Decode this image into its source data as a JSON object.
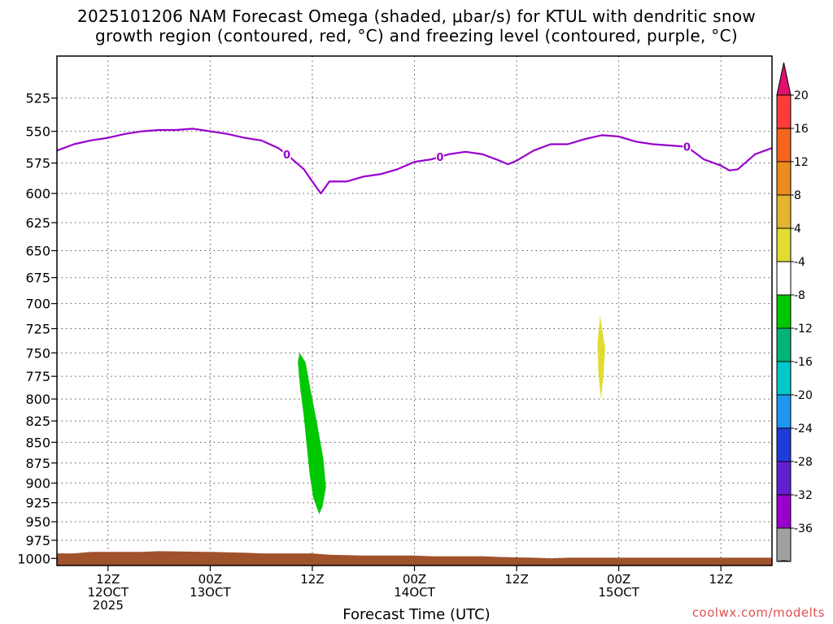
{
  "title_line1": "2025101206 NAM Forecast Omega (shaded, μbar/s) for KTUL with dendritic snow",
  "title_line2": "growth region (contoured, red, °C) and freezing level (contoured, purple, °C)",
  "x_axis_title": "Forecast Time (UTC)",
  "credit": "coolwx.com/modelts",
  "chart_data": {
    "type": "time-height cross section",
    "x_ticks": [
      {
        "hour": 12,
        "lines": [
          "12Z",
          "12OCT",
          "2025"
        ]
      },
      {
        "hour": 24,
        "lines": [
          "00Z",
          "13OCT"
        ]
      },
      {
        "hour": 36,
        "lines": [
          "12Z"
        ]
      },
      {
        "hour": 48,
        "lines": [
          "00Z",
          "14OCT"
        ]
      },
      {
        "hour": 60,
        "lines": [
          "12Z"
        ]
      },
      {
        "hour": 72,
        "lines": [
          "00Z",
          "15OCT"
        ]
      },
      {
        "hour": 84,
        "lines": [
          "12Z"
        ]
      }
    ],
    "x_range_hours": [
      6,
      90
    ],
    "y_axis": "pressure (hPa)",
    "y_range": [
      1010,
      495
    ],
    "y_ticks": [
      525,
      550,
      575,
      600,
      625,
      650,
      675,
      700,
      725,
      750,
      775,
      800,
      825,
      850,
      875,
      900,
      925,
      950,
      975,
      1000
    ],
    "grid": true,
    "freezing_level": {
      "color": "#9900cc",
      "label": "0",
      "label_hours": [
        33,
        51,
        80
      ],
      "points": [
        [
          6,
          565
        ],
        [
          8,
          560
        ],
        [
          10,
          557
        ],
        [
          12,
          555
        ],
        [
          14,
          552
        ],
        [
          16,
          550
        ],
        [
          18,
          549
        ],
        [
          20,
          549
        ],
        [
          22,
          548
        ],
        [
          24,
          550
        ],
        [
          26,
          552
        ],
        [
          28,
          555
        ],
        [
          30,
          557
        ],
        [
          32,
          563
        ],
        [
          33,
          568
        ],
        [
          34,
          574
        ],
        [
          35,
          580
        ],
        [
          36,
          590
        ],
        [
          37,
          600
        ],
        [
          38,
          590
        ],
        [
          40,
          590
        ],
        [
          42,
          586
        ],
        [
          44,
          584
        ],
        [
          46,
          580
        ],
        [
          48,
          574
        ],
        [
          50,
          572
        ],
        [
          52,
          568
        ],
        [
          54,
          566
        ],
        [
          56,
          568
        ],
        [
          58,
          573
        ],
        [
          59,
          576
        ],
        [
          60,
          573
        ],
        [
          62,
          565
        ],
        [
          64,
          560
        ],
        [
          66,
          560
        ],
        [
          68,
          556
        ],
        [
          70,
          553
        ],
        [
          72,
          554
        ],
        [
          74,
          558
        ],
        [
          76,
          560
        ],
        [
          78,
          561
        ],
        [
          80,
          562
        ],
        [
          82,
          572
        ],
        [
          84,
          577
        ],
        [
          85,
          581
        ],
        [
          86,
          580
        ],
        [
          88,
          568
        ],
        [
          90,
          563
        ]
      ]
    },
    "shaded_regions": [
      {
        "value_range": "-8 to -4",
        "color": "#00c800",
        "outline": [
          [
            34.5,
            750
          ],
          [
            35.2,
            760
          ],
          [
            35.8,
            790
          ],
          [
            36.6,
            830
          ],
          [
            37.3,
            870
          ],
          [
            37.6,
            905
          ],
          [
            37.2,
            930
          ],
          [
            36.8,
            940
          ],
          [
            36.1,
            918
          ],
          [
            35.7,
            890
          ],
          [
            35.3,
            850
          ],
          [
            35.0,
            820
          ],
          [
            34.6,
            790
          ],
          [
            34.3,
            760
          ]
        ]
      },
      {
        "value_range": "4 to 8",
        "color": "#e0dc32",
        "outline": [
          [
            69.8,
            712
          ],
          [
            70.4,
            745
          ],
          [
            70.2,
            775
          ],
          [
            69.9,
            800
          ],
          [
            69.6,
            770
          ],
          [
            69.5,
            740
          ]
        ]
      }
    ],
    "terrain": {
      "color": "#a0522d",
      "surface_points": [
        [
          6,
          993
        ],
        [
          8,
          993
        ],
        [
          10,
          991
        ],
        [
          16,
          991
        ],
        [
          18,
          990
        ],
        [
          24,
          991
        ],
        [
          28,
          992
        ],
        [
          30,
          993
        ],
        [
          36,
          993
        ],
        [
          38,
          995
        ],
        [
          42,
          996
        ],
        [
          48,
          996
        ],
        [
          50,
          997
        ],
        [
          56,
          997
        ],
        [
          58,
          998
        ],
        [
          62,
          999
        ],
        [
          64,
          1000
        ],
        [
          66,
          999
        ],
        [
          70,
          999
        ],
        [
          74,
          999
        ],
        [
          80,
          999
        ],
        [
          86,
          999
        ],
        [
          90,
          999
        ]
      ]
    },
    "colorbar": {
      "labels": [
        "20",
        "16",
        "12",
        "8",
        "4",
        "-4",
        "-8",
        "-12",
        "-16",
        "-20",
        "-24",
        "-28",
        "-32",
        "-36"
      ],
      "colors": [
        "#ff3c3c",
        "#f4641e",
        "#ec8c1e",
        "#e4b42e",
        "#e0dc32",
        "#ffffff",
        "#00c800",
        "#00b478",
        "#00c8c8",
        "#1e96f0",
        "#1e3cdc",
        "#6020d0",
        "#9900cc",
        "#a0a0a0"
      ],
      "top_arrow_color": "#e0106e",
      "bottom_arrow_color": "#000000"
    }
  }
}
